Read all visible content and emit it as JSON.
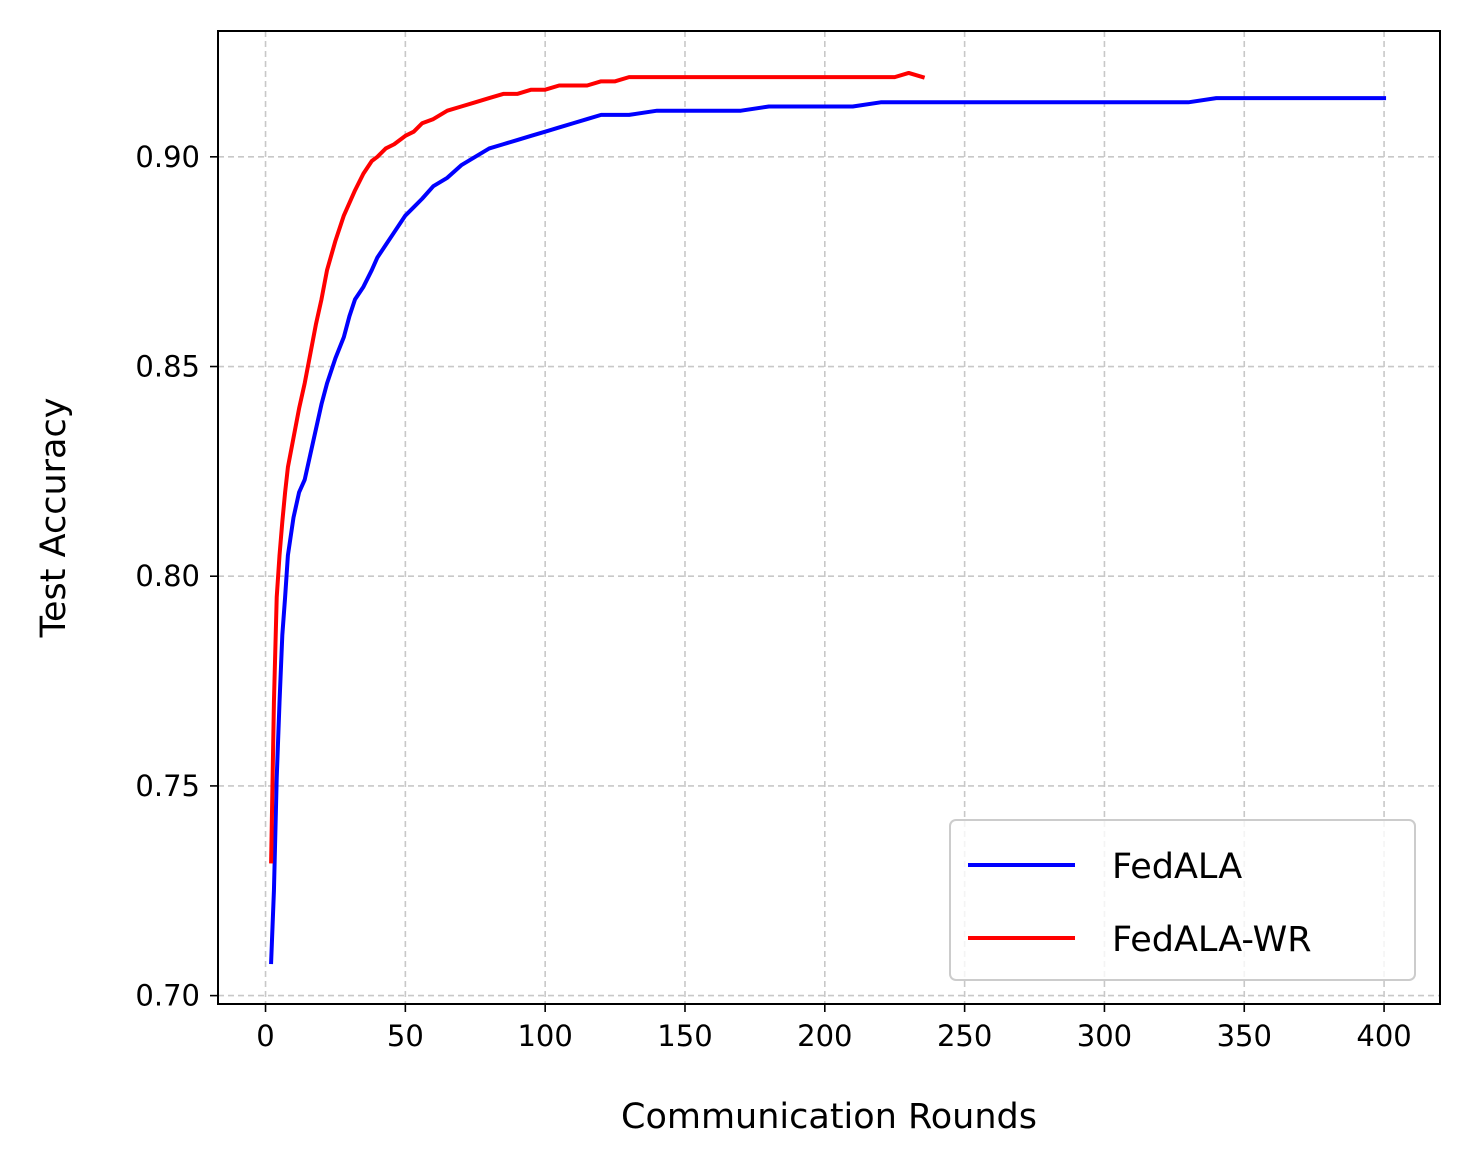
{
  "chart_data": {
    "type": "line",
    "xlabel": "Communication Rounds",
    "ylabel": "Test Accuracy",
    "xlim": [
      -17,
      420
    ],
    "ylim": [
      0.698,
      0.93
    ],
    "xticks": [
      0,
      50,
      100,
      150,
      200,
      250,
      300,
      350,
      400
    ],
    "yticks": [
      0.7,
      0.75,
      0.8,
      0.85,
      0.9
    ],
    "xtick_labels": [
      "0",
      "50",
      "100",
      "150",
      "200",
      "250",
      "300",
      "350",
      "400"
    ],
    "ytick_labels": [
      "0.70",
      "0.75",
      "0.80",
      "0.85",
      "0.90"
    ],
    "grid": true,
    "legend_position": "lower-right",
    "series": [
      {
        "name": "FedALA",
        "color": "#0000ff",
        "x": [
          2,
          3,
          4,
          5,
          6,
          7,
          8,
          10,
          12,
          14,
          16,
          18,
          20,
          22,
          25,
          28,
          30,
          32,
          35,
          38,
          40,
          43,
          46,
          50,
          53,
          56,
          60,
          65,
          70,
          75,
          80,
          85,
          90,
          95,
          100,
          105,
          110,
          115,
          120,
          125,
          130,
          140,
          150,
          160,
          170,
          180,
          190,
          200,
          210,
          220,
          230,
          240,
          250,
          260,
          270,
          280,
          290,
          300,
          310,
          320,
          330,
          340,
          350,
          360,
          370,
          380,
          390,
          400
        ],
        "y": [
          0.708,
          0.725,
          0.752,
          0.77,
          0.786,
          0.795,
          0.805,
          0.814,
          0.82,
          0.823,
          0.829,
          0.835,
          0.841,
          0.846,
          0.852,
          0.857,
          0.862,
          0.866,
          0.869,
          0.873,
          0.876,
          0.879,
          0.882,
          0.886,
          0.888,
          0.89,
          0.893,
          0.895,
          0.898,
          0.9,
          0.902,
          0.903,
          0.904,
          0.905,
          0.906,
          0.907,
          0.908,
          0.909,
          0.91,
          0.91,
          0.91,
          0.911,
          0.911,
          0.911,
          0.911,
          0.912,
          0.912,
          0.912,
          0.912,
          0.913,
          0.913,
          0.913,
          0.913,
          0.913,
          0.913,
          0.913,
          0.913,
          0.913,
          0.913,
          0.913,
          0.913,
          0.914,
          0.914,
          0.914,
          0.914,
          0.914,
          0.914,
          0.914
        ]
      },
      {
        "name": "FedALA-WR",
        "color": "#ff0000",
        "x": [
          2,
          3,
          4,
          5,
          6,
          7,
          8,
          10,
          12,
          14,
          16,
          18,
          20,
          22,
          25,
          28,
          30,
          32,
          35,
          38,
          40,
          43,
          46,
          50,
          53,
          56,
          60,
          65,
          70,
          75,
          80,
          85,
          90,
          95,
          100,
          105,
          110,
          115,
          120,
          125,
          130,
          135,
          140,
          150,
          160,
          170,
          180,
          190,
          200,
          210,
          220,
          225,
          230,
          235
        ],
        "y": [
          0.732,
          0.77,
          0.795,
          0.805,
          0.813,
          0.82,
          0.826,
          0.833,
          0.84,
          0.846,
          0.853,
          0.86,
          0.866,
          0.873,
          0.88,
          0.886,
          0.889,
          0.892,
          0.896,
          0.899,
          0.9,
          0.902,
          0.903,
          0.905,
          0.906,
          0.908,
          0.909,
          0.911,
          0.912,
          0.913,
          0.914,
          0.915,
          0.915,
          0.916,
          0.916,
          0.917,
          0.917,
          0.917,
          0.918,
          0.918,
          0.919,
          0.919,
          0.919,
          0.919,
          0.919,
          0.919,
          0.919,
          0.919,
          0.919,
          0.919,
          0.919,
          0.919,
          0.92,
          0.919
        ]
      }
    ]
  }
}
